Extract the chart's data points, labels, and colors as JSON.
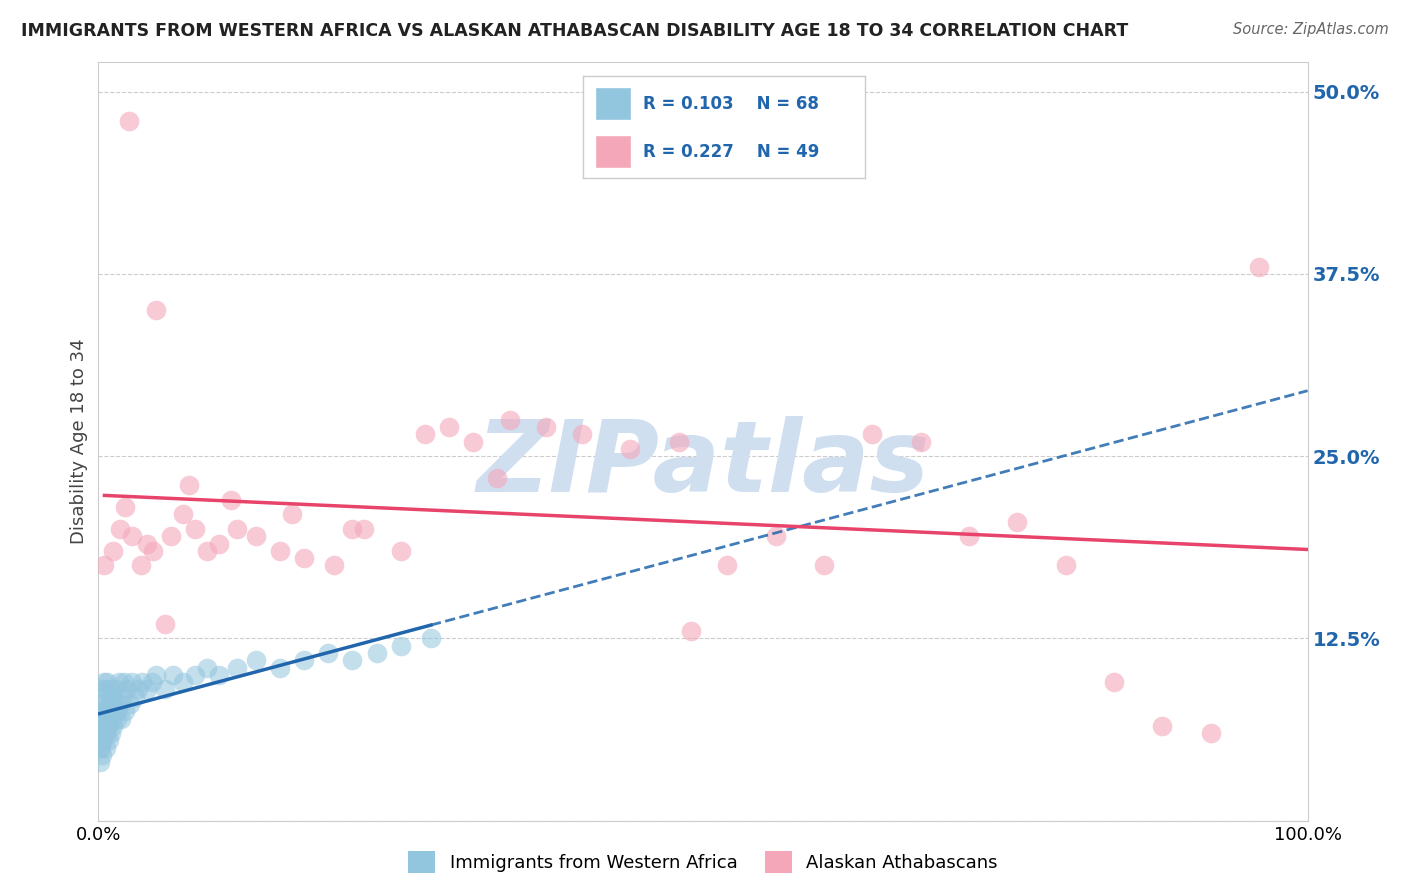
{
  "title": "IMMIGRANTS FROM WESTERN AFRICA VS ALASKAN ATHABASCAN DISABILITY AGE 18 TO 34 CORRELATION CHART",
  "source": "Source: ZipAtlas.com",
  "ylabel": "Disability Age 18 to 34",
  "xlim": [
    0.0,
    1.0
  ],
  "ylim": [
    0.0,
    0.52
  ],
  "yticks": [
    0.0,
    0.125,
    0.25,
    0.375,
    0.5
  ],
  "ytick_labels": [
    "",
    "12.5%",
    "25.0%",
    "37.5%",
    "50.0%"
  ],
  "xtick_labels": [
    "0.0%",
    "100.0%"
  ],
  "color_blue": "#92c5de",
  "color_pink": "#f4a7b9",
  "line_color_blue": "#2166ac",
  "line_color_pink": "#e8436a",
  "background_color": "#ffffff",
  "blue_x": [
    0.001,
    0.001,
    0.001,
    0.002,
    0.002,
    0.002,
    0.002,
    0.003,
    0.003,
    0.003,
    0.003,
    0.004,
    0.004,
    0.004,
    0.005,
    0.005,
    0.005,
    0.006,
    0.006,
    0.006,
    0.007,
    0.007,
    0.007,
    0.008,
    0.008,
    0.009,
    0.009,
    0.01,
    0.01,
    0.011,
    0.011,
    0.012,
    0.012,
    0.013,
    0.014,
    0.015,
    0.015,
    0.016,
    0.017,
    0.018,
    0.019,
    0.02,
    0.021,
    0.022,
    0.024,
    0.026,
    0.028,
    0.03,
    0.033,
    0.036,
    0.04,
    0.044,
    0.048,
    0.055,
    0.062,
    0.07,
    0.08,
    0.09,
    0.1,
    0.115,
    0.13,
    0.15,
    0.17,
    0.19,
    0.21,
    0.23,
    0.25,
    0.275
  ],
  "blue_y": [
    0.05,
    0.06,
    0.04,
    0.07,
    0.05,
    0.08,
    0.06,
    0.045,
    0.065,
    0.075,
    0.09,
    0.055,
    0.07,
    0.085,
    0.06,
    0.075,
    0.095,
    0.05,
    0.07,
    0.09,
    0.06,
    0.075,
    0.095,
    0.065,
    0.08,
    0.055,
    0.075,
    0.06,
    0.085,
    0.07,
    0.09,
    0.065,
    0.085,
    0.075,
    0.08,
    0.07,
    0.09,
    0.075,
    0.095,
    0.08,
    0.07,
    0.085,
    0.095,
    0.075,
    0.09,
    0.08,
    0.095,
    0.085,
    0.09,
    0.095,
    0.09,
    0.095,
    0.1,
    0.09,
    0.1,
    0.095,
    0.1,
    0.105,
    0.1,
    0.105,
    0.11,
    0.105,
    0.11,
    0.115,
    0.11,
    0.115,
    0.12,
    0.125
  ],
  "pink_x": [
    0.005,
    0.012,
    0.018,
    0.022,
    0.028,
    0.035,
    0.04,
    0.045,
    0.055,
    0.06,
    0.07,
    0.08,
    0.09,
    0.1,
    0.115,
    0.13,
    0.15,
    0.17,
    0.195,
    0.22,
    0.25,
    0.27,
    0.29,
    0.31,
    0.34,
    0.37,
    0.4,
    0.44,
    0.48,
    0.52,
    0.56,
    0.6,
    0.64,
    0.68,
    0.72,
    0.76,
    0.8,
    0.84,
    0.88,
    0.92,
    0.96,
    0.025,
    0.048,
    0.075,
    0.11,
    0.16,
    0.21,
    0.33,
    0.49
  ],
  "pink_y": [
    0.175,
    0.185,
    0.2,
    0.215,
    0.195,
    0.175,
    0.19,
    0.185,
    0.135,
    0.195,
    0.21,
    0.2,
    0.185,
    0.19,
    0.2,
    0.195,
    0.185,
    0.18,
    0.175,
    0.2,
    0.185,
    0.265,
    0.27,
    0.26,
    0.275,
    0.27,
    0.265,
    0.255,
    0.26,
    0.175,
    0.195,
    0.175,
    0.265,
    0.26,
    0.195,
    0.205,
    0.175,
    0.095,
    0.065,
    0.06,
    0.38,
    0.48,
    0.35,
    0.23,
    0.22,
    0.21,
    0.2,
    0.235,
    0.13
  ],
  "watermark_text": "ZIPatlas",
  "watermark_color": "#d0dff0"
}
